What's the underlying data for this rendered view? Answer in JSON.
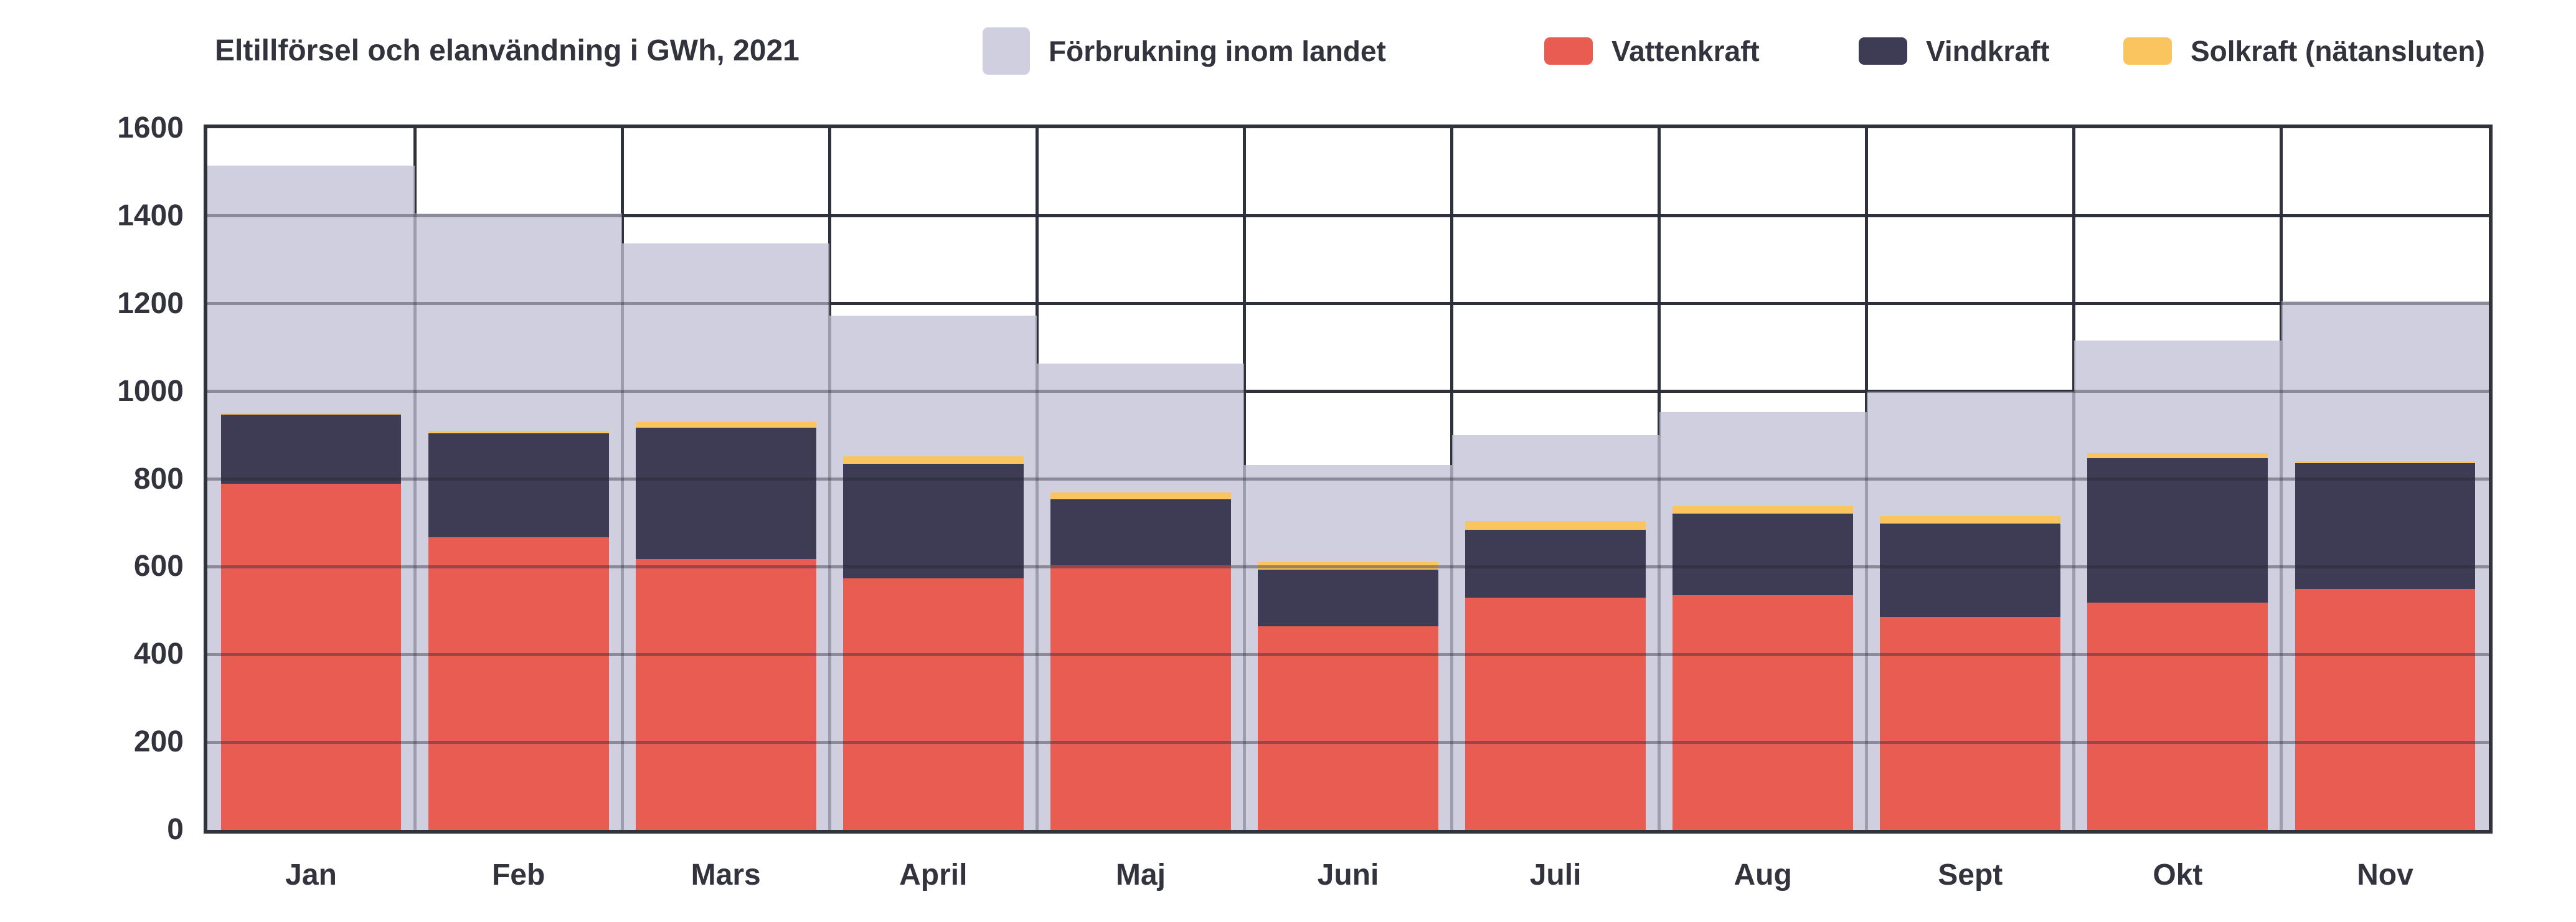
{
  "title": "Eltillförsel och elanvändning i GWh, 2021",
  "colors": {
    "background_series": "#d0cfdf",
    "vattenkraft": "#e85c52",
    "vindkraft": "#3d3c54",
    "solkraft": "#fac55f",
    "text": "#32333d",
    "plot_border": "#30323c",
    "gridline": "#33353f"
  },
  "legend": {
    "items": [
      {
        "label": "Förbrukning inom landet",
        "color": "#d0cfdf",
        "swatch": "square"
      },
      {
        "label": "Vattenkraft",
        "color": "#e85c52",
        "swatch": "dash"
      },
      {
        "label": "Vindkraft",
        "color": "#3d3c54",
        "swatch": "dash"
      },
      {
        "label": "Solkraft (nätansluten)",
        "color": "#fac55f",
        "swatch": "dash"
      }
    ]
  },
  "axes": {
    "y_ticks": [
      "0",
      "200",
      "400",
      "600",
      "800",
      "1000",
      "1200",
      "1400",
      "1600"
    ],
    "x_ticks": [
      "Jan",
      "Feb",
      "Mars",
      "April",
      "Maj",
      "Juni",
      "Juli",
      "Aug",
      "Sept",
      "Okt",
      "Nov"
    ]
  },
  "chart_data": {
    "type": "bar",
    "subtype": "stacked columns over full-width background columns",
    "title": "Eltillförsel och elanvändning i GWh, 2021",
    "categories": [
      "Jan",
      "Feb",
      "Mars",
      "April",
      "Maj",
      "Juni",
      "Juli",
      "Aug",
      "Sept",
      "Okt",
      "Nov"
    ],
    "series": [
      {
        "name": "Förbrukning inom landet",
        "role": "background",
        "color": "#d0cfdf",
        "values": [
          1515,
          1405,
          1338,
          1173,
          1063,
          832,
          900,
          952,
          1000,
          1116,
          1206
        ]
      },
      {
        "name": "Vattenkraft",
        "role": "stack",
        "color": "#e85c52",
        "values": [
          790,
          667,
          617,
          574,
          604,
          464,
          530,
          535,
          486,
          518,
          549
        ]
      },
      {
        "name": "Vindkraft",
        "role": "stack",
        "color": "#3d3c54",
        "values": [
          157,
          237,
          300,
          261,
          150,
          129,
          154,
          186,
          212,
          329,
          287
        ]
      },
      {
        "name": "Solkraft (nätansluten)",
        "role": "stack",
        "color": "#fac55f",
        "values": [
          3,
          6,
          13,
          17,
          16,
          18,
          20,
          17,
          17,
          12,
          5
        ]
      }
    ],
    "xlabel": "",
    "ylabel": "GWh",
    "ylim": [
      0,
      1600
    ],
    "ytick_step": 200,
    "grid": true,
    "legend_position": "top"
  }
}
